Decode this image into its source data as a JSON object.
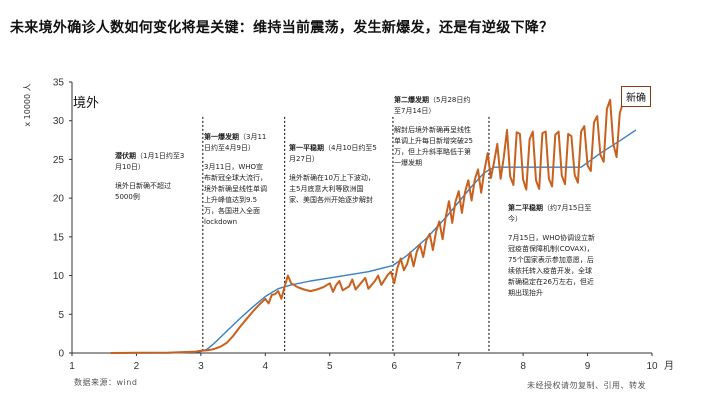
{
  "title": "未来境外确诊人数如何变化将是关键：维持当前震荡，发生新爆发，还是有逆级下降？",
  "source_note": "数据来源：wind",
  "copyright": "未经授权请勿复制、引用、转发",
  "colors": {
    "actual": "#c8601e",
    "trend": "#3a7fc4",
    "divider": "#000000"
  },
  "chart_data": {
    "type": "line",
    "panel_label": "境外",
    "xlabel": "月",
    "ylabel": "x 10000 人",
    "xlim": [
      1,
      10
    ],
    "ylim": [
      0,
      35
    ],
    "x_ticks": [
      1,
      2,
      3,
      4,
      5,
      6,
      7,
      8,
      9,
      10
    ],
    "y_ticks": [
      0,
      5,
      10,
      15,
      20,
      25,
      30,
      35
    ],
    "dividers": [
      3.03,
      4.3,
      5.98,
      7.47
    ],
    "series": [
      {
        "name": "新确",
        "color": "#c8601e",
        "points": [
          [
            1.6,
            0
          ],
          [
            2.0,
            0.03
          ],
          [
            2.5,
            0.05
          ],
          [
            2.9,
            0.15
          ],
          [
            3.0,
            0.3
          ],
          [
            3.1,
            0.35
          ],
          [
            3.2,
            0.5
          ],
          [
            3.3,
            0.8
          ],
          [
            3.4,
            1.3
          ],
          [
            3.5,
            2.2
          ],
          [
            3.6,
            3.3
          ],
          [
            3.7,
            4.3
          ],
          [
            3.8,
            5.3
          ],
          [
            3.9,
            6.2
          ],
          [
            4.0,
            7.0
          ],
          [
            4.05,
            6.4
          ],
          [
            4.1,
            7.5
          ],
          [
            4.15,
            7.6
          ],
          [
            4.2,
            8.0
          ],
          [
            4.25,
            7.0
          ],
          [
            4.3,
            8.6
          ],
          [
            4.35,
            10.0
          ],
          [
            4.4,
            9.0
          ],
          [
            4.5,
            8.5
          ],
          [
            4.6,
            8.2
          ],
          [
            4.7,
            8.0
          ],
          [
            4.8,
            8.2
          ],
          [
            4.9,
            8.5
          ],
          [
            5.0,
            9.0
          ],
          [
            5.05,
            7.9
          ],
          [
            5.1,
            8.8
          ],
          [
            5.15,
            9.3
          ],
          [
            5.2,
            8.1
          ],
          [
            5.3,
            8.6
          ],
          [
            5.35,
            9.5
          ],
          [
            5.4,
            8.2
          ],
          [
            5.5,
            9.2
          ],
          [
            5.55,
            9.7
          ],
          [
            5.6,
            8.3
          ],
          [
            5.7,
            9.3
          ],
          [
            5.75,
            10.0
          ],
          [
            5.8,
            8.8
          ],
          [
            5.9,
            10.1
          ],
          [
            5.95,
            10.5
          ],
          [
            6.0,
            9.0
          ],
          [
            6.05,
            11.0
          ],
          [
            6.1,
            12.2
          ],
          [
            6.15,
            10.7
          ],
          [
            6.2,
            11.5
          ],
          [
            6.25,
            13.0
          ],
          [
            6.3,
            11.2
          ],
          [
            6.35,
            13.1
          ],
          [
            6.4,
            14.0
          ],
          [
            6.45,
            12.4
          ],
          [
            6.5,
            14.6
          ],
          [
            6.55,
            15.4
          ],
          [
            6.6,
            13.3
          ],
          [
            6.65,
            15.7
          ],
          [
            6.7,
            17.0
          ],
          [
            6.75,
            14.7
          ],
          [
            6.8,
            17.6
          ],
          [
            6.85,
            19.6
          ],
          [
            6.9,
            16.8
          ],
          [
            6.95,
            19.5
          ],
          [
            7.0,
            20.9
          ],
          [
            7.05,
            18.1
          ],
          [
            7.1,
            20.8
          ],
          [
            7.15,
            22.3
          ],
          [
            7.2,
            19.7
          ],
          [
            7.25,
            22.4
          ],
          [
            7.3,
            23.7
          ],
          [
            7.35,
            20.7
          ],
          [
            7.4,
            23.6
          ],
          [
            7.45,
            25.8
          ],
          [
            7.5,
            22.6
          ],
          [
            7.55,
            24.7
          ],
          [
            7.6,
            27.0
          ],
          [
            7.65,
            22.5
          ],
          [
            7.7,
            25.3
          ],
          [
            7.75,
            28.8
          ],
          [
            7.8,
            22.8
          ],
          [
            7.85,
            21.7
          ],
          [
            7.9,
            28.5
          ],
          [
            7.95,
            28.3
          ],
          [
            8.0,
            22.4
          ],
          [
            8.05,
            21.1
          ],
          [
            8.1,
            27.6
          ],
          [
            8.15,
            28.6
          ],
          [
            8.2,
            22.3
          ],
          [
            8.25,
            21.2
          ],
          [
            8.3,
            28.4
          ],
          [
            8.35,
            28.6
          ],
          [
            8.4,
            22.5
          ],
          [
            8.45,
            21.5
          ],
          [
            8.5,
            28.2
          ],
          [
            8.55,
            28.6
          ],
          [
            8.6,
            22.9
          ],
          [
            8.65,
            21.8
          ],
          [
            8.7,
            28.3
          ],
          [
            8.75,
            28.0
          ],
          [
            8.8,
            23.0
          ],
          [
            8.85,
            22.0
          ],
          [
            8.9,
            28.6
          ],
          [
            8.95,
            29.3
          ],
          [
            9.0,
            24.2
          ],
          [
            9.05,
            23.5
          ],
          [
            9.1,
            29.8
          ],
          [
            9.15,
            30.6
          ],
          [
            9.2,
            25.6
          ],
          [
            9.25,
            24.7
          ],
          [
            9.3,
            31.5
          ],
          [
            9.35,
            32.7
          ],
          [
            9.4,
            27.0
          ],
          [
            9.45,
            25.3
          ],
          [
            9.5,
            31.0
          ],
          [
            9.55,
            32.3
          ]
        ]
      },
      {
        "name": "",
        "color": "#3a7fc4",
        "points": [
          [
            1.6,
            0
          ],
          [
            2.5,
            0
          ],
          [
            2.9,
            0.1
          ],
          [
            3.0,
            0.2
          ],
          [
            3.1,
            0.5
          ],
          [
            3.2,
            1.2
          ],
          [
            3.4,
            2.8
          ],
          [
            3.6,
            4.4
          ],
          [
            3.8,
            5.9
          ],
          [
            4.0,
            7.3
          ],
          [
            4.2,
            8.3
          ],
          [
            4.4,
            8.8
          ],
          [
            4.7,
            9.3
          ],
          [
            5.0,
            9.7
          ],
          [
            5.3,
            10.1
          ],
          [
            5.6,
            10.5
          ],
          [
            5.98,
            11.3
          ],
          [
            6.2,
            12.6
          ],
          [
            6.5,
            14.8
          ],
          [
            6.8,
            17.5
          ],
          [
            7.0,
            19.5
          ],
          [
            7.2,
            21.5
          ],
          [
            7.4,
            23.3
          ],
          [
            7.55,
            24.0
          ],
          [
            8.0,
            24.0
          ],
          [
            8.5,
            24.0
          ],
          [
            8.9,
            24.0
          ],
          [
            9.2,
            25.8
          ],
          [
            9.5,
            27.4
          ],
          [
            9.75,
            28.8
          ]
        ]
      }
    ]
  },
  "annotations": [
    {
      "phase": "潜伏期",
      "head_rest": "（1月1日约至3月10日）",
      "body": "境外日新确不超过5000例"
    },
    {
      "phase": "第一爆发期",
      "head_rest": "（3月11日约至4月9日）",
      "body": "3月11日，WHO宣布新冠全球大流行，境外新确呈线性单调上升峰值达到9.5万，各国进入全面lockdown"
    },
    {
      "phase": "第一平稳期",
      "head_rest": "（4月10日约至5月27日）",
      "body": "境外新确在10万上下波动，主5月底意大利等欧洲国家、美国各州开始逐步解封"
    },
    {
      "phase": "第二爆发期",
      "head_rest": "（5月28日约至7月14日）",
      "body": "解封后境外新确再呈线性单调上升每日新增突破25万，但上升斜率略低于第一爆发期"
    },
    {
      "phase": "第二平稳期",
      "head_rest": "（约7月15日至今）",
      "body": "7月15日，WHO协调设立新冠疫苗保障机制(COVAX)，75个国家表示参加意愿，后续依托转入疫苗开发，全球新确稳定在26万左右，但近期出现抬升"
    }
  ]
}
